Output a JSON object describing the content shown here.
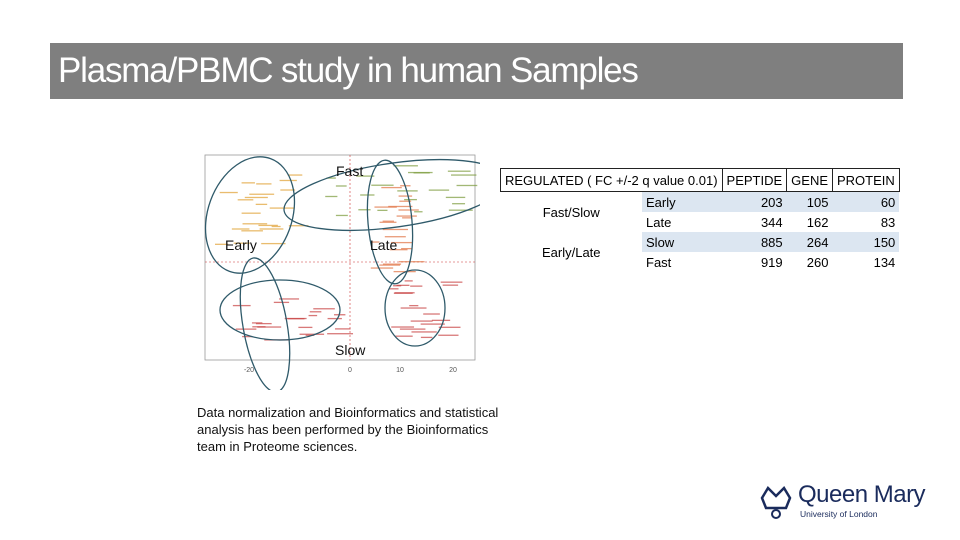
{
  "header": {
    "title": "Plasma/PBMC study in human Samples"
  },
  "figure": {
    "labels": {
      "fast": "Fast",
      "early": "Early",
      "late": "Late",
      "slow": "Slow"
    },
    "x_ticks": [
      "-20",
      "0",
      "10",
      "20"
    ]
  },
  "table": {
    "columns": [
      "REGULATED ( FC +/-2 q value 0.01)",
      "PEPTIDE",
      "GENE",
      "PROTEIN"
    ],
    "groups": [
      {
        "label": "Fast/Slow",
        "rows": [
          {
            "name": "Early",
            "values": [
              203,
              105,
              60
            ]
          },
          {
            "name": "Late",
            "values": [
              344,
              162,
              83
            ]
          }
        ]
      },
      {
        "label": "Early/Late",
        "rows": [
          {
            "name": "Slow",
            "values": [
              885,
              264,
              150
            ]
          },
          {
            "name": "Fast",
            "values": [
              919,
              260,
              134
            ]
          }
        ]
      }
    ]
  },
  "caption": [
    "Data normalization and Bioinformatics and statistical",
    "analysis has been performed by the Bioinformatics",
    "team in Proteome sciences."
  ],
  "logo": {
    "name": "Queen Mary",
    "subtitle": "University of London"
  }
}
